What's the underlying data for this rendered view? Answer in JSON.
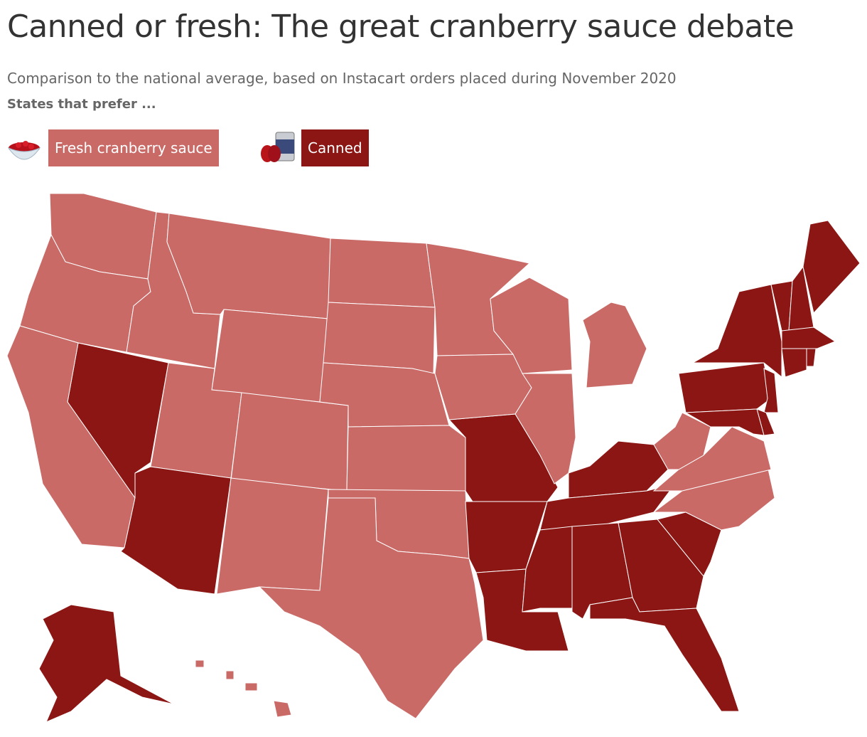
{
  "header": {
    "title": "Canned or fresh: The great cranberry sauce debate",
    "subtitle": "Comparison to the national average, based on Instacart orders placed during November 2020",
    "prompt": "States that prefer ..."
  },
  "map": {
    "legend": [
      {
        "label": "Fresh cranberry sauce",
        "color": "#c96a67"
      },
      {
        "label": "Canned",
        "color": "#8b1614"
      }
    ],
    "regions": [
      0,
      0,
      0,
      0,
      0,
      1,
      0,
      0,
      1,
      0,
      0,
      0,
      0,
      0,
      0,
      0,
      0,
      1,
      1,
      1,
      0,
      0,
      0,
      0,
      0,
      1,
      1,
      1,
      1,
      1,
      1,
      1,
      0,
      0,
      0,
      1,
      1,
      1,
      1,
      1,
      1,
      1,
      1,
      1,
      1,
      1,
      1,
      0,
      0,
      0,
      0
    ]
  }
}
